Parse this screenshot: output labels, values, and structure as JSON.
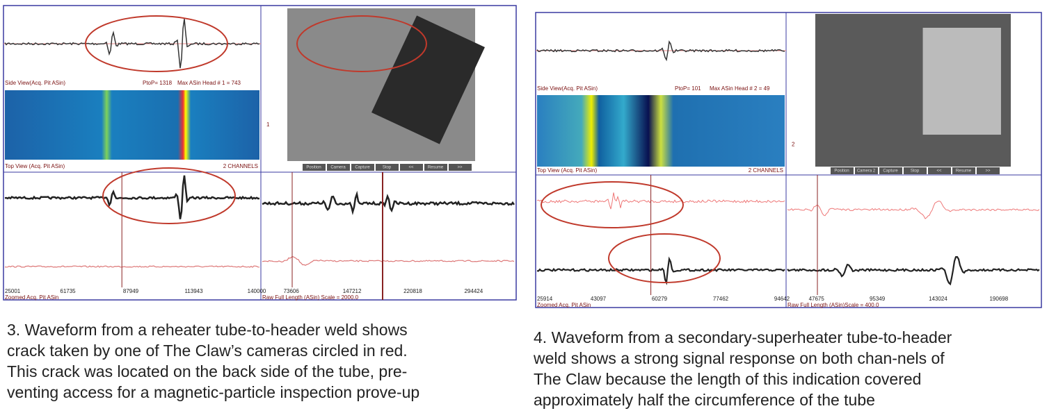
{
  "figures": [
    {
      "side_view_label": "Side View(Acq. Pit ASin)",
      "ptp": "PtoP= 1318",
      "max_label": "Max ASin Head # 1 = 743",
      "channel_marker": "1",
      "top_view_label": "Top View (Acq. Pit ASin)",
      "channels": "2 CHANNELS",
      "buttons": [
        "Position",
        "Camera",
        "Capture",
        "Stop",
        "<<",
        "Resume",
        ">>"
      ],
      "left_ticks": [
        "25001",
        "61735",
        "87949",
        "113943",
        "140000"
      ],
      "right_ticks": [
        "73606",
        "147212",
        "220818",
        "294424"
      ],
      "bottom_left_label": "Zoomed Acq. Pit ASin",
      "bottom_right_label": "Raw Full Length (ASin) Scale = 2000.0",
      "caption": [
        "3. Waveform from a reheater tube-to-header weld shows",
        "crack taken by one of The Claw’s cameras circled in red.",
        "This crack was located on the back side of the tube, pre-",
        "venting access for a magnetic-particle inspection prove-up"
      ]
    },
    {
      "side_view_label": "Side View(Acq. Pit ASin)",
      "ptp": "PtoP= 101",
      "max_label": "Max ASin Head # 2 = 49",
      "channel_marker": "2",
      "top_view_label": "Top View (Acq. Pit ASin)",
      "channels": "2 CHANNELS",
      "buttons": [
        "Position",
        "Camera 2",
        "Capture",
        "Stop",
        "<<",
        "Resume",
        ">>"
      ],
      "left_ticks": [
        "25914",
        "43097",
        "60279",
        "77462",
        "94642"
      ],
      "right_ticks": [
        "47675",
        "95349",
        "143024",
        "190698"
      ],
      "bottom_left_label": "Zoomed Acq. Pit ASin",
      "bottom_right_label": "Raw Full Length (ASin)Scale = 400.0",
      "caption": [
        "4. Waveform from a secondary-superheater tube-to-header",
        "weld shows a strong signal response on both chan-nels of",
        "The Claw because the length of this indication covered",
        "approximately half the circumference of the tube"
      ]
    }
  ]
}
